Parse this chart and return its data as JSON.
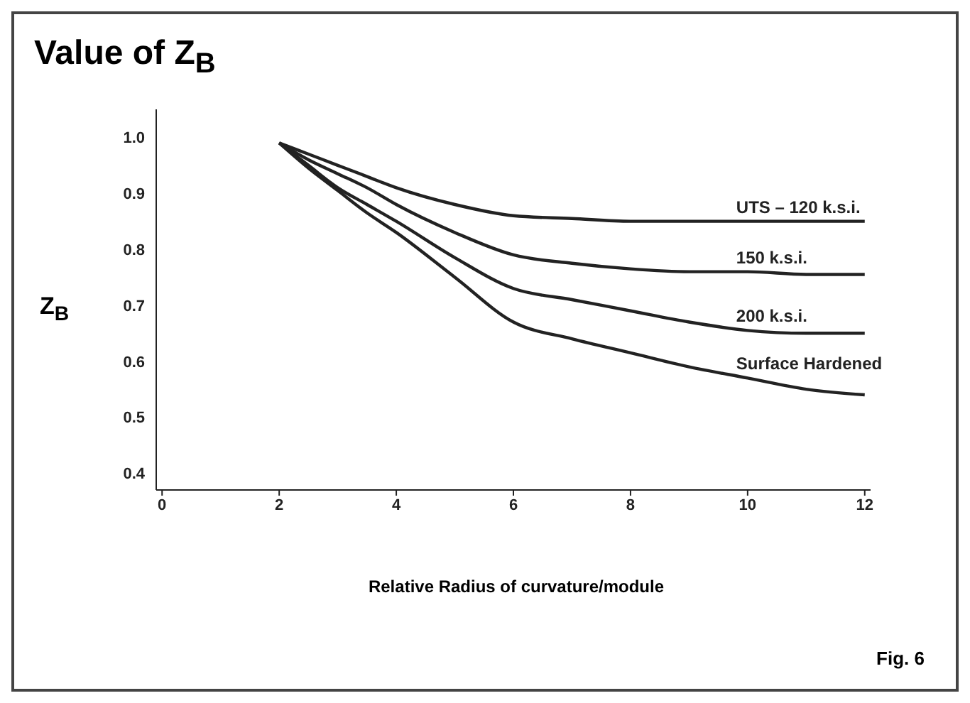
{
  "chart_data": {
    "type": "line",
    "title": "Value of Z$_{B}$",
    "xlabel": "Relative Radius of curvature/module",
    "ylabel": "Z$_{B}$",
    "annotations": [
      "Fig. 6"
    ],
    "x": [
      2,
      2.5,
      3,
      3.5,
      4,
      5,
      6,
      7,
      8,
      9,
      10,
      11,
      12
    ],
    "series": [
      {
        "name": "UTS – 120 k.s.i.",
        "color": "#222222",
        "values": [
          0.99,
          0.97,
          0.95,
          0.93,
          0.91,
          0.88,
          0.86,
          0.855,
          0.85,
          0.85,
          0.85,
          0.85,
          0.85
        ]
      },
      {
        "name": "150 k.s.i.",
        "color": "#222222",
        "values": [
          0.99,
          0.96,
          0.935,
          0.91,
          0.88,
          0.83,
          0.79,
          0.775,
          0.765,
          0.76,
          0.76,
          0.755,
          0.755
        ]
      },
      {
        "name": "200 k.s.i.",
        "color": "#222222",
        "values": [
          0.99,
          0.95,
          0.91,
          0.88,
          0.85,
          0.785,
          0.73,
          0.71,
          0.69,
          0.67,
          0.655,
          0.65,
          0.65
        ]
      },
      {
        "name": "Surface Hardened",
        "color": "#222222",
        "values": [
          0.99,
          0.945,
          0.905,
          0.865,
          0.83,
          0.75,
          0.67,
          0.64,
          0.615,
          0.59,
          0.57,
          0.55,
          0.54
        ]
      }
    ],
    "xlim": [
      -0.1,
      12.1
    ],
    "xticks": [
      0,
      2,
      4,
      6,
      8,
      10,
      12
    ],
    "ylim": [
      0.37,
      1.05
    ],
    "yticks": [
      0.4,
      0.5,
      0.6,
      0.7,
      0.8,
      0.9,
      {
        "value": 1,
        "label": "1.0"
      }
    ],
    "grid": false,
    "legend": false,
    "marker": "none",
    "line_style": "solid"
  }
}
